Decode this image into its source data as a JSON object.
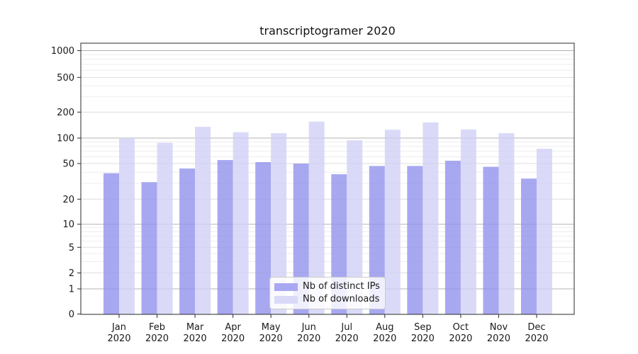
{
  "chart_data": {
    "type": "bar",
    "title": "transcriptogramer 2020",
    "categories": [
      "Jan",
      "Feb",
      "Mar",
      "Apr",
      "May",
      "Jun",
      "Jul",
      "Aug",
      "Sep",
      "Oct",
      "Nov",
      "Dec"
    ],
    "x_axis": {
      "year_label": "2020"
    },
    "series": [
      {
        "name": "Nb of distinct IPs",
        "color": "#9292ee",
        "swatch": "#a8a8f2",
        "values": [
          39,
          31,
          44,
          55,
          52,
          50,
          38,
          47,
          47,
          54,
          46,
          34
        ]
      },
      {
        "name": "Nb of downloads",
        "color": "#d1d1f6",
        "swatch": "#dadaf8",
        "values": [
          100,
          88,
          135,
          117,
          114,
          155,
          94,
          125,
          152,
          126,
          114,
          75
        ]
      }
    ],
    "y_axis": {
      "scale": "symlog",
      "ticks": [
        0,
        1,
        2,
        5,
        10,
        20,
        50,
        100,
        200,
        500,
        1000
      ],
      "ylim": [
        0,
        1200
      ]
    },
    "legend": {
      "position": "lower-center-inside"
    },
    "grid": true,
    "colors": {
      "major_grid": "#b3b3b3",
      "sub_grid": "#dddddd",
      "minor_grid": "#eeeeee",
      "spine": "#2a2a2a",
      "tick_label": "#1a1a1a",
      "plot_background": "#ffffff"
    }
  }
}
